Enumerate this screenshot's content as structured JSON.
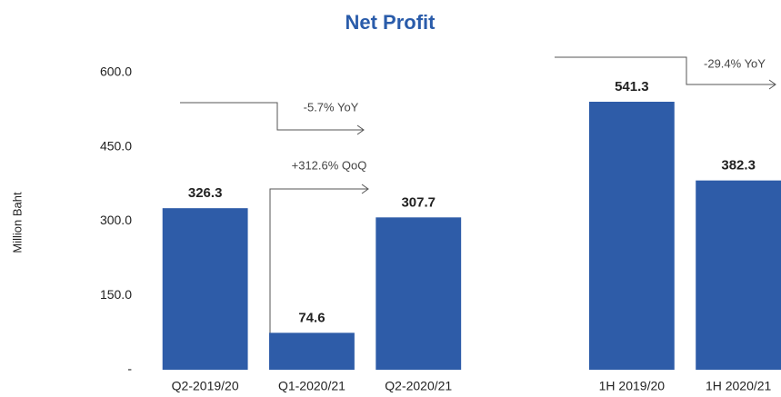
{
  "chart_data": {
    "type": "bar",
    "title": "Net Profit",
    "y_label": "Million Baht",
    "categories": [
      "Q2-2019/20",
      "Q1-2020/21",
      "Q2-2020/21",
      null,
      "1H 2019/20",
      "1H 2020/21"
    ],
    "values": [
      326.3,
      74.6,
      307.7,
      null,
      541.3,
      382.3
    ],
    "color": "#2e5ca8",
    "ylim": [
      0,
      600
    ],
    "yticks": [
      {
        "value": 0,
        "label": "-"
      },
      {
        "value": 150,
        "label": "150.0"
      },
      {
        "value": 300,
        "label": "300.0"
      },
      {
        "value": 450,
        "label": "450.0"
      },
      {
        "value": 600,
        "label": "600.0"
      }
    ],
    "grid": false,
    "annotations": [
      "-5.7% YoY",
      "+312.6% QoQ",
      "-29.4% YoY"
    ]
  }
}
